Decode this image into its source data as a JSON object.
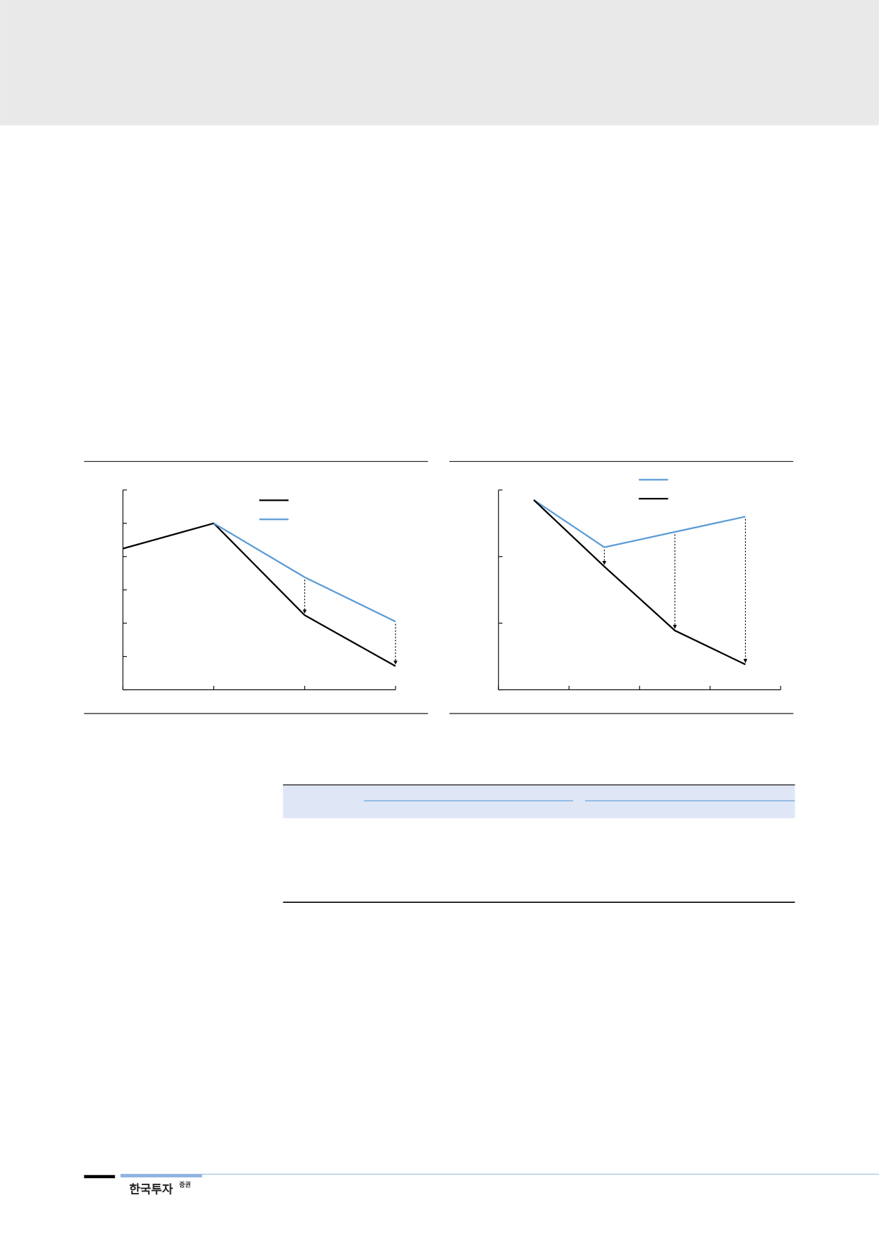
{
  "chart_data": [
    {
      "type": "line",
      "x": [
        0,
        1,
        2,
        3
      ],
      "xlim": [
        0,
        3
      ],
      "xticks": [
        0,
        1,
        2,
        3
      ],
      "ylim": [
        0,
        6
      ],
      "yticks": [
        0,
        1,
        2,
        3,
        4,
        5,
        6
      ],
      "series": [
        {
          "color": "#000000",
          "values": [
            4.24,
            5.0,
            2.24,
            0.71
          ]
        },
        {
          "color": "#5b9bd5",
          "values": [
            null,
            5.0,
            3.38,
            2.05
          ]
        }
      ]
    },
    {
      "type": "line",
      "x": [
        0.5,
        1.5,
        2.5,
        3.5
      ],
      "xlim": [
        0,
        4
      ],
      "xticks": [
        0,
        1,
        2,
        3,
        4
      ],
      "ylim": [
        0,
        3
      ],
      "yticks": [
        0,
        1,
        2,
        3
      ],
      "series": [
        {
          "color": "#5b9bd5",
          "values": [
            2.85,
            2.14,
            2.37,
            2.6
          ]
        },
        {
          "color": "#000000",
          "values": [
            2.85,
            1.85,
            0.89,
            0.38
          ]
        }
      ]
    }
  ],
  "footer": {
    "logo": "한국투자",
    "logo_suffix": "증권"
  }
}
